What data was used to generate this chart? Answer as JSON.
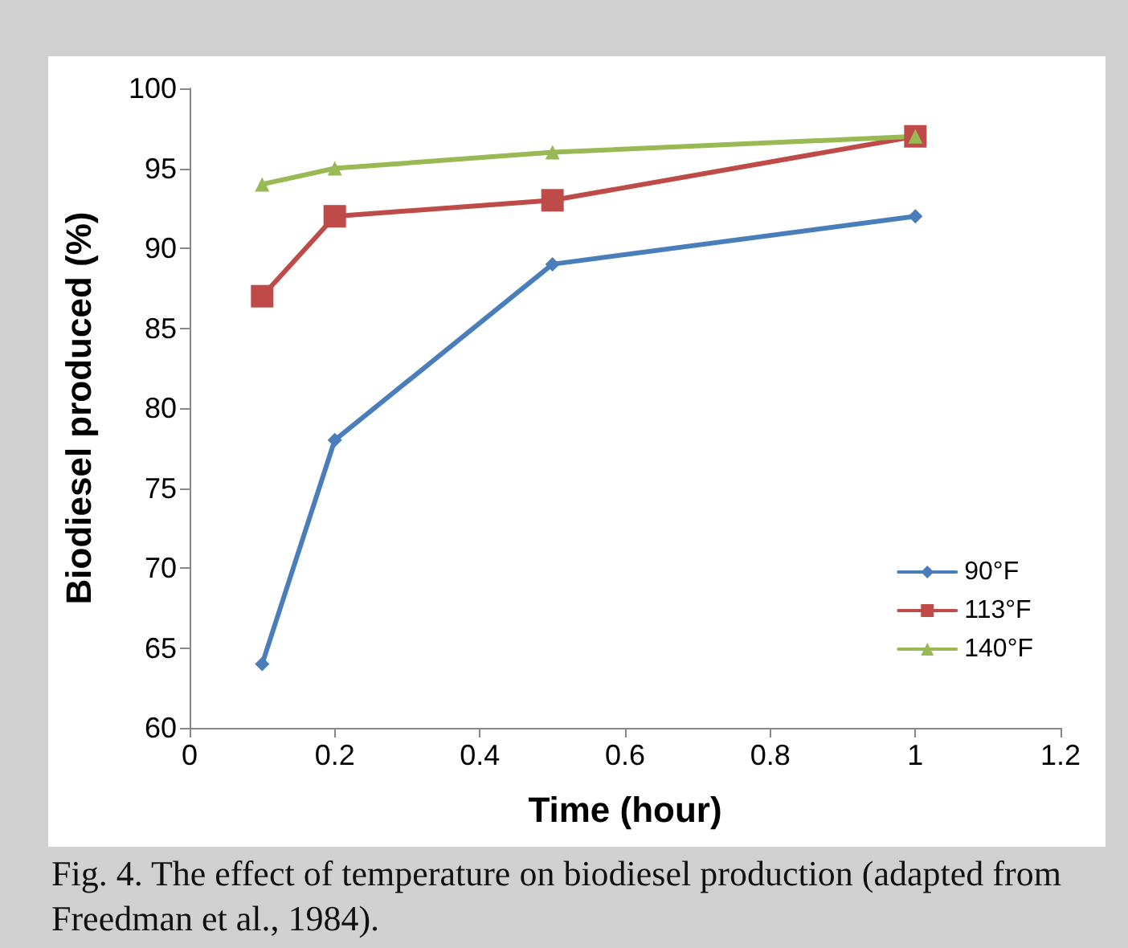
{
  "chart_data": {
    "type": "line",
    "xlabel": "Time (hour)",
    "ylabel": "Biodiesel produced (%)",
    "x": [
      0.1,
      0.2,
      0.5,
      1
    ],
    "series": [
      {
        "name": "90°F",
        "color": "#4a7ebb",
        "marker": "diamond",
        "values": [
          64,
          78,
          89,
          92
        ]
      },
      {
        "name": "113°F",
        "color": "#be4b48",
        "marker": "square",
        "values": [
          87,
          92,
          93,
          97
        ]
      },
      {
        "name": "140°F",
        "color": "#98b954",
        "marker": "triangle",
        "values": [
          94,
          95,
          96,
          97
        ]
      }
    ],
    "xlim": [
      0,
      1.2
    ],
    "xticks": [
      0,
      0.2,
      0.4,
      0.6,
      0.8,
      1,
      1.2
    ],
    "ylim": [
      60,
      100
    ],
    "yticks": [
      60,
      65,
      70,
      75,
      80,
      85,
      90,
      95,
      100
    ],
    "grid": false,
    "legend": "bottom right",
    "line_style": "solid",
    "annotations": [
      "Fig. 4. The effect of temperature on biodiesel production (adapted from Freedman et al., 1984)."
    ]
  }
}
